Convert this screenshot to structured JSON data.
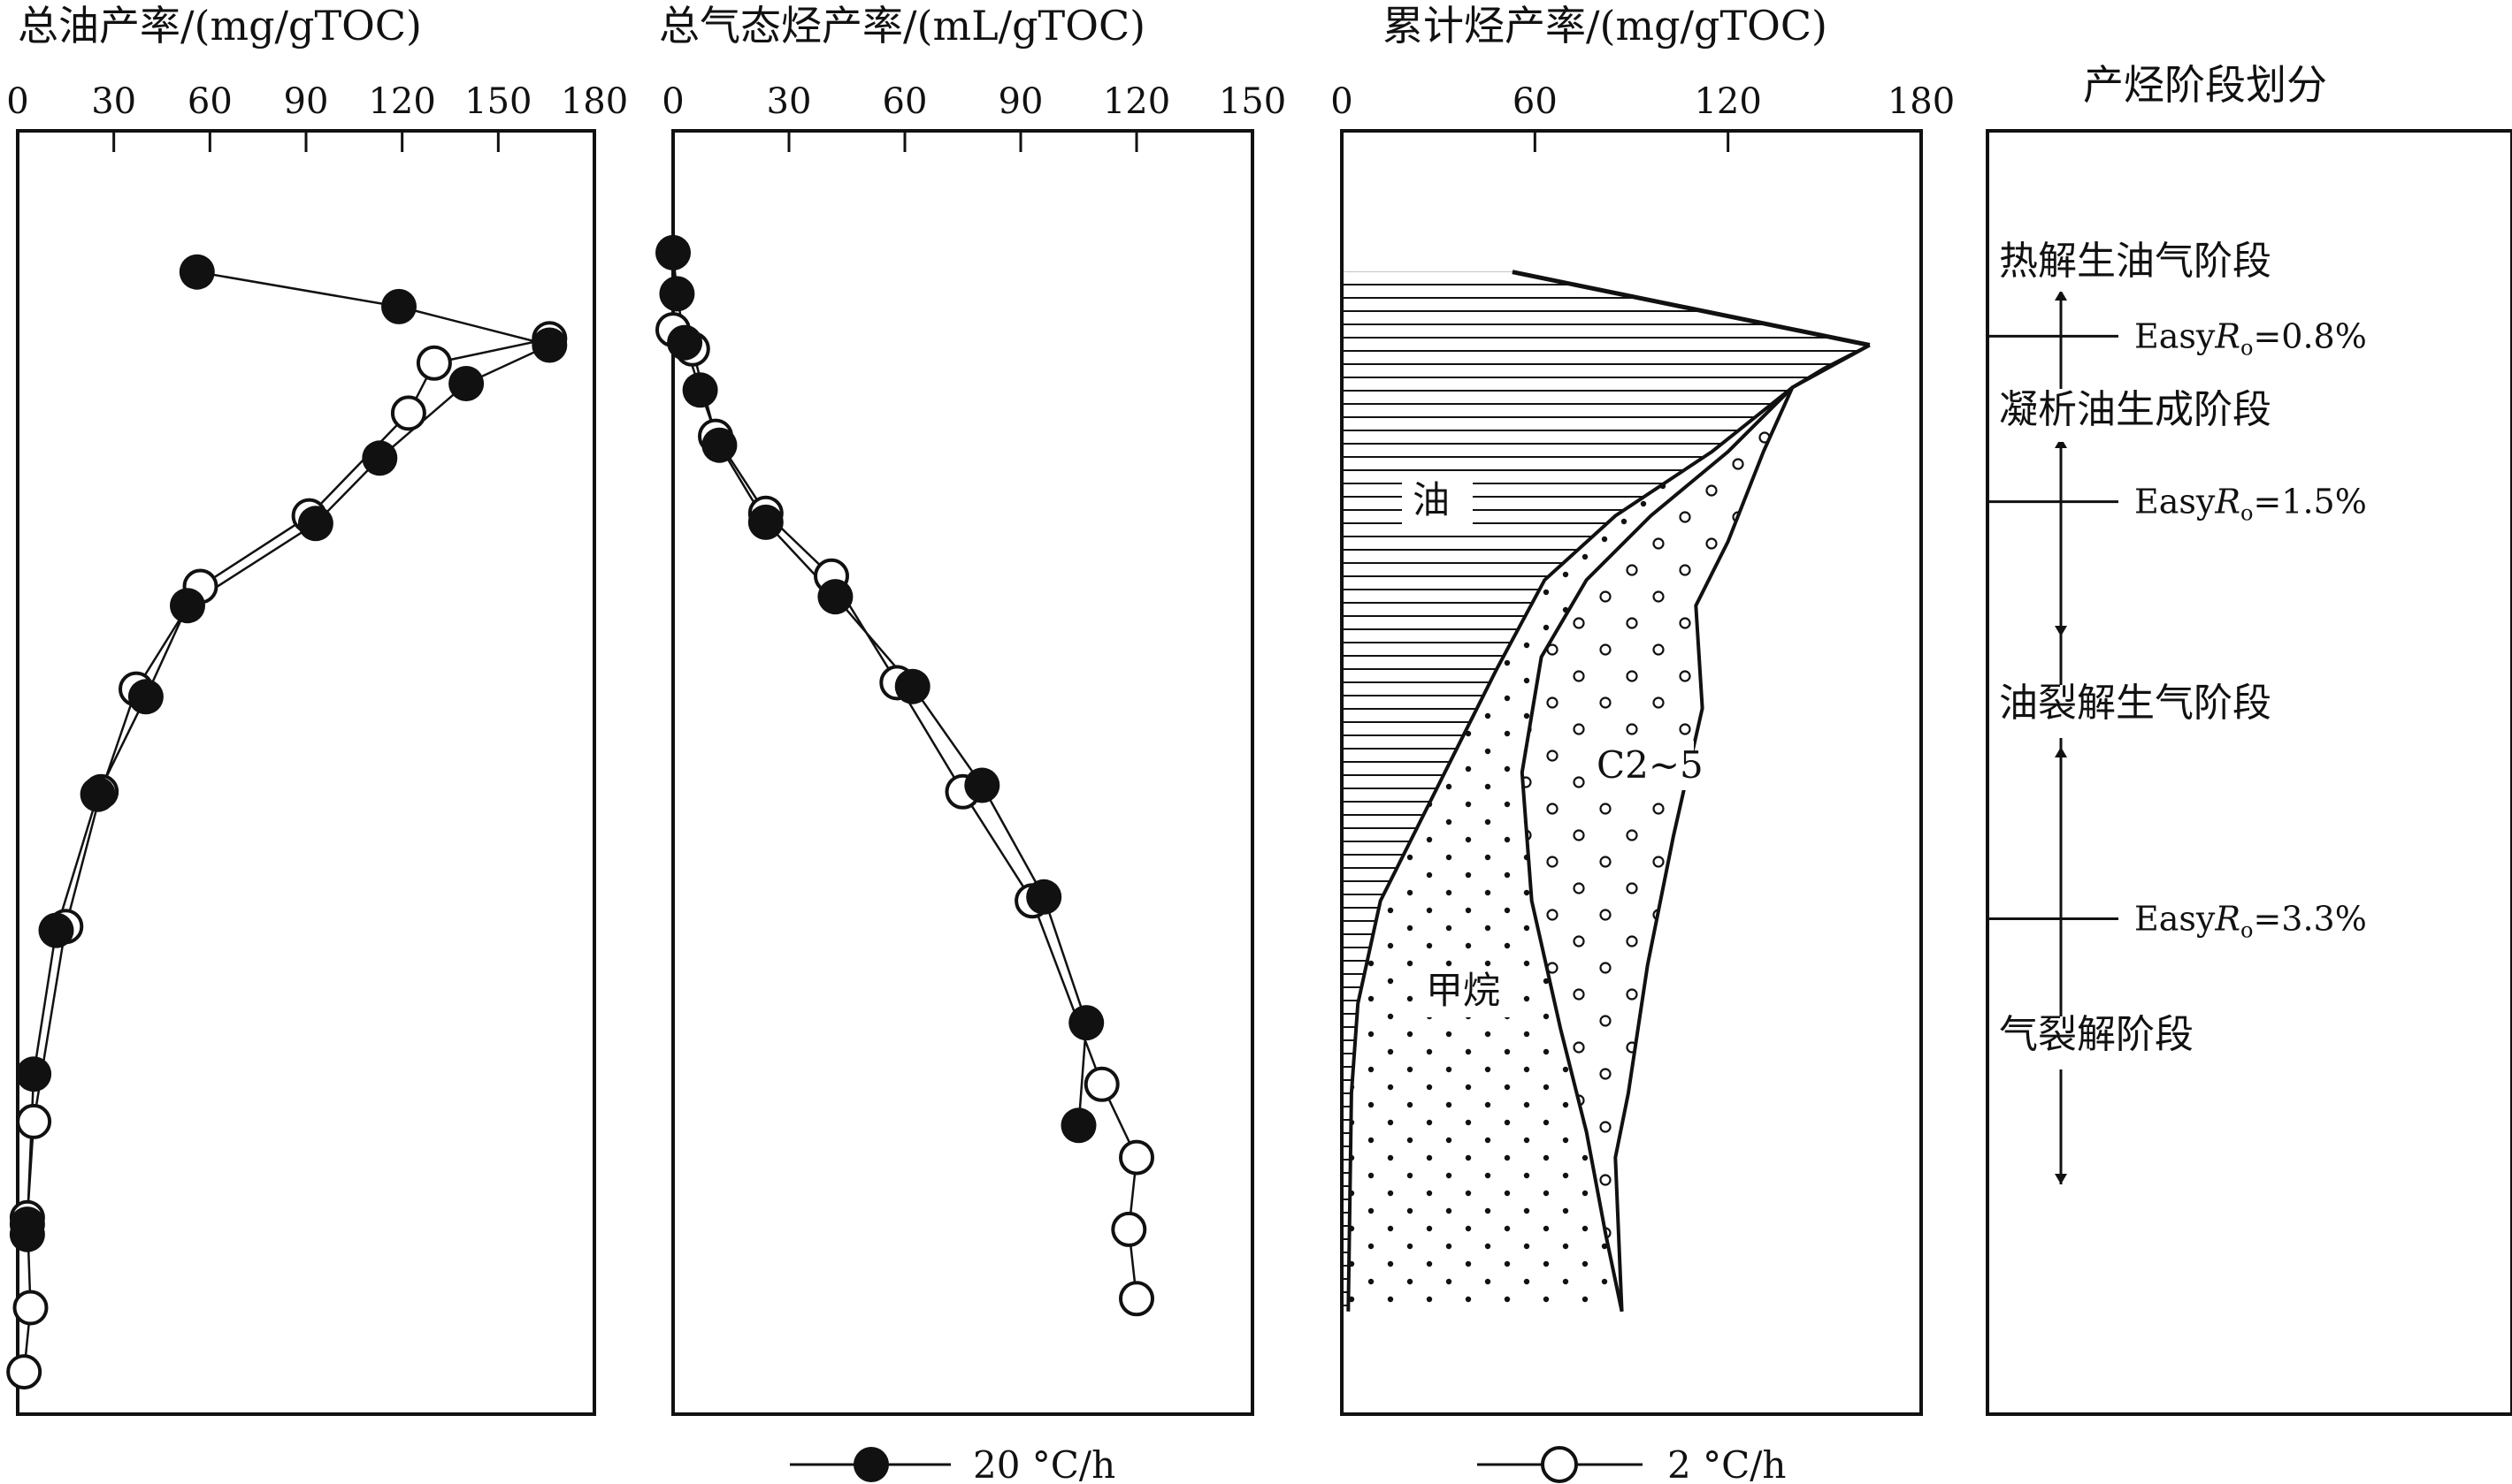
{
  "chart_data": [
    {
      "type": "scatter",
      "title": "总油产率/(mg/gTOC)",
      "xlim": [
        0,
        180
      ],
      "xticks": [
        0,
        30,
        60,
        90,
        120,
        150,
        180
      ],
      "series": [
        {
          "name": "20 °C/h",
          "marker": "filled",
          "points": [
            [
              56,
              0.11
            ],
            [
              119,
              0.137
            ],
            [
              166,
              0.167
            ],
            [
              140,
              0.197
            ],
            [
              113,
              0.255
            ],
            [
              93,
              0.306
            ],
            [
              53,
              0.37
            ],
            [
              40,
              0.441
            ],
            [
              25,
              0.517
            ],
            [
              12,
              0.623
            ],
            [
              5,
              0.735
            ],
            [
              3,
              0.852
            ],
            [
              3,
              0.86
            ]
          ]
        },
        {
          "name": "2 °C/h",
          "marker": "hollow",
          "points": [
            [
              166,
              0.162
            ],
            [
              130,
              0.181
            ],
            [
              122,
              0.22
            ],
            [
              91,
              0.3
            ],
            [
              57,
              0.355
            ],
            [
              37,
              0.435
            ],
            [
              26,
              0.515
            ],
            [
              15,
              0.62
            ],
            [
              5,
              0.772
            ],
            [
              3,
              0.847
            ],
            [
              4,
              0.917
            ],
            [
              2,
              0.967
            ]
          ]
        }
      ]
    },
    {
      "type": "scatter",
      "title": "总气态烃产率/(mL/gTOC)",
      "xlim": [
        0,
        150
      ],
      "xticks": [
        0,
        30,
        60,
        90,
        120,
        150
      ],
      "series": [
        {
          "name": "20 °C/h",
          "marker": "filled",
          "points": [
            [
              0,
              0.095
            ],
            [
              1,
              0.127
            ],
            [
              3,
              0.165
            ],
            [
              7,
              0.202
            ],
            [
              12,
              0.245
            ],
            [
              24,
              0.305
            ],
            [
              42,
              0.363
            ],
            [
              62,
              0.433
            ],
            [
              80,
              0.51
            ],
            [
              96,
              0.597
            ],
            [
              107,
              0.695
            ],
            [
              105,
              0.775
            ]
          ]
        },
        {
          "name": "2 °C/h",
          "marker": "hollow",
          "points": [
            [
              0,
              0.155
            ],
            [
              5,
              0.17
            ],
            [
              11,
              0.238
            ],
            [
              24,
              0.298
            ],
            [
              41,
              0.347
            ],
            [
              58,
              0.43
            ],
            [
              75,
              0.515
            ],
            [
              93,
              0.6
            ],
            [
              111,
              0.743
            ],
            [
              120,
              0.8
            ],
            [
              118,
              0.856
            ],
            [
              120,
              0.91
            ]
          ]
        }
      ]
    },
    {
      "type": "area",
      "title": "累计烃产率/(mg/gTOC)",
      "xlim": [
        0,
        180
      ],
      "xticks": [
        0,
        60,
        120,
        180
      ],
      "regions": [
        {
          "name": "油",
          "pattern": "horizontal-lines"
        },
        {
          "name": "甲烷",
          "pattern": "dots"
        },
        {
          "name": "C2~5",
          "pattern": "circles"
        }
      ],
      "boundaries": {
        "oil_top": [
          [
            53,
            0.11
          ],
          [
            164,
            0.167
          ]
        ],
        "total": [
          [
            164,
            0.167
          ],
          [
            150,
            0.185
          ],
          [
            140,
            0.2
          ],
          [
            131,
            0.25
          ],
          [
            120,
            0.32
          ],
          [
            110,
            0.37
          ],
          [
            112,
            0.45
          ],
          [
            103,
            0.55
          ],
          [
            95,
            0.65
          ],
          [
            89,
            0.75
          ],
          [
            85,
            0.8
          ],
          [
            87,
            0.92
          ]
        ],
        "gas_top": [
          [
            164,
            0.167
          ],
          [
            140,
            0.2
          ],
          [
            120,
            0.25
          ],
          [
            96,
            0.3
          ],
          [
            76,
            0.35
          ],
          [
            62,
            0.41
          ],
          [
            56,
            0.5
          ],
          [
            59,
            0.6
          ],
          [
            68,
            0.7
          ],
          [
            76,
            0.78
          ],
          [
            82,
            0.86
          ],
          [
            87,
            0.92
          ]
        ],
        "methane_top": [
          [
            140,
            0.2
          ],
          [
            115,
            0.25
          ],
          [
            85,
            0.3
          ],
          [
            63,
            0.35
          ],
          [
            48,
            0.42
          ],
          [
            28,
            0.52
          ],
          [
            12,
            0.6
          ],
          [
            5,
            0.68
          ],
          [
            3,
            0.75
          ],
          [
            2,
            0.92
          ]
        ]
      }
    },
    {
      "type": "table",
      "title": "产烃阶段划分",
      "stages": [
        "热解生油气阶段",
        "凝析油生成阶段",
        "油裂解生气阶段",
        "气裂解阶段"
      ],
      "boundaries": [
        {
          "label": "EasyRo=0.8%",
          "prefix": "Easy",
          "symbol": "R",
          "sub": "o",
          "value": "=0.8%",
          "depth": 0.16
        },
        {
          "label": "EasyRo=1.5%",
          "prefix": "Easy",
          "symbol": "R",
          "sub": "o",
          "value": "=1.5%",
          "depth": 0.289
        },
        {
          "label": "EasyRo=3.3%",
          "prefix": "Easy",
          "symbol": "R",
          "sub": "o",
          "value": "=3.3%",
          "depth": 0.614
        }
      ]
    }
  ],
  "legend": [
    {
      "label": "20 °C/h",
      "marker": "filled"
    },
    {
      "label": "2 °C/h",
      "marker": "hollow"
    }
  ]
}
